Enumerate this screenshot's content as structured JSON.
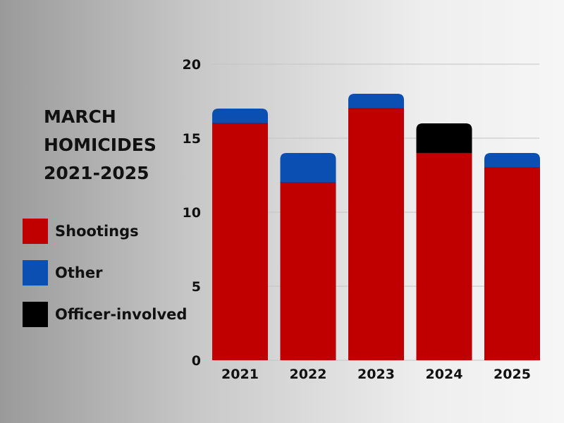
{
  "chart_data": {
    "type": "bar",
    "stacked": true,
    "title": [
      "MARCH",
      "HOMICIDES",
      "2021-2025"
    ],
    "categories": [
      "2021",
      "2022",
      "2023",
      "2024",
      "2025"
    ],
    "series": [
      {
        "name": "Shootings",
        "color": "#c00000",
        "values": [
          16,
          12,
          17,
          14,
          13
        ]
      },
      {
        "name": "Other",
        "color": "#0b4fb3",
        "values": [
          1,
          2,
          1,
          0,
          1
        ]
      },
      {
        "name": "Officer-involved",
        "color": "#000000",
        "values": [
          0,
          0,
          0,
          2,
          0
        ]
      }
    ],
    "yticks": [
      "0",
      "5",
      "10",
      "15",
      "20"
    ],
    "ylim": [
      0,
      20
    ],
    "grid": true,
    "legend_position": "left",
    "xlabel": "",
    "ylabel": ""
  }
}
